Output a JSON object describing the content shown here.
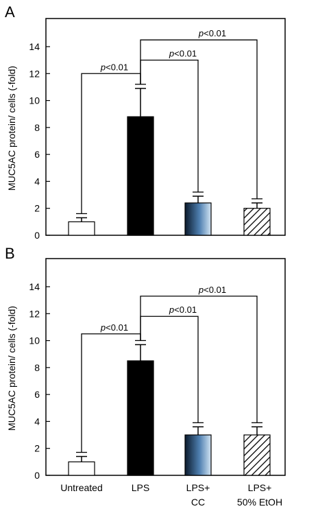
{
  "chart_data": [
    {
      "type": "bar",
      "panel_label": "A",
      "ylabel": "MUC5AC protein/ cells (-fold)",
      "ylim": [
        0,
        16
      ],
      "yticks": [
        "0",
        "2",
        "4",
        "6",
        "8",
        "10",
        "12",
        "14"
      ],
      "categories": [
        "Untreated",
        "LPS",
        "LPS+ CC",
        "LPS+ 50% EtOH"
      ],
      "values": [
        1.0,
        8.8,
        2.4,
        2.0
      ],
      "errors": [
        0.3,
        2.1,
        0.5,
        0.4
      ],
      "fills": [
        "white",
        "black",
        "gradient-blue",
        "diagonal-hatch"
      ],
      "show_category_labels": false,
      "significance": [
        {
          "from": 0,
          "to": 1,
          "y": 12.0,
          "text": "p<0.01",
          "italic": "p",
          "rest": "<0.01"
        },
        {
          "from": 1,
          "to": 2,
          "y": 13.0,
          "text": "p<0.01",
          "italic": "p",
          "rest": "<0.01"
        },
        {
          "from": 1,
          "to": 3,
          "y": 14.5,
          "text": "p<0.01",
          "italic": "p",
          "rest": "<0.01"
        }
      ]
    },
    {
      "type": "bar",
      "panel_label": "B",
      "ylabel": "MUC5AC protein/ cells (-fold)",
      "ylim": [
        0,
        16
      ],
      "yticks": [
        "0",
        "2",
        "4",
        "6",
        "8",
        "10",
        "12",
        "14"
      ],
      "categories": [
        "Untreated",
        "LPS",
        "LPS+ CC",
        "LPS+ 50% EtOH"
      ],
      "category_lines": [
        [
          "Untreated"
        ],
        [
          "LPS"
        ],
        [
          "LPS+",
          "CC"
        ],
        [
          "LPS+",
          "50% EtOH"
        ]
      ],
      "values": [
        1.0,
        8.5,
        3.0,
        3.0
      ],
      "errors": [
        0.4,
        1.2,
        0.6,
        0.6
      ],
      "fills": [
        "white",
        "black",
        "gradient-blue",
        "diagonal-hatch"
      ],
      "show_category_labels": true,
      "significance": [
        {
          "from": 0,
          "to": 1,
          "y": 10.5,
          "text": "p<0.01",
          "italic": "p",
          "rest": "<0.01"
        },
        {
          "from": 1,
          "to": 2,
          "y": 11.8,
          "text": "p<0.01",
          "italic": "p",
          "rest": "<0.01"
        },
        {
          "from": 1,
          "to": 3,
          "y": 13.3,
          "text": "p<0.01",
          "italic": "p",
          "rest": "<0.01"
        }
      ]
    }
  ]
}
